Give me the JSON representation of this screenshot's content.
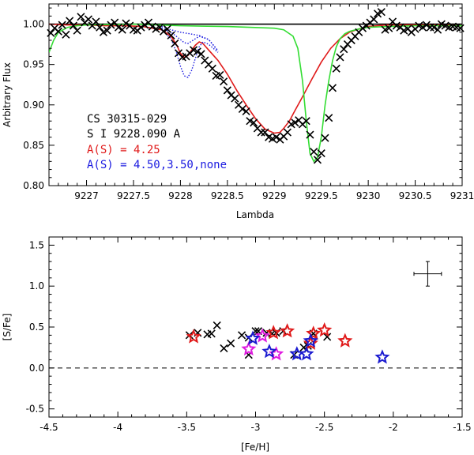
{
  "chart_data": [
    {
      "type": "line",
      "panel": "top",
      "title": "",
      "xlabel": "Lambda",
      "ylabel": "Arbitrary Flux",
      "xlim": [
        9226.6,
        9231.0
      ],
      "ylim": [
        0.8,
        1.025
      ],
      "xticks": [
        9227,
        9227.5,
        9228,
        9228.5,
        9229,
        9229.5,
        9230,
        9230.5,
        9231
      ],
      "xtick_labels": [
        "9227",
        "9227.5",
        "9228",
        "9228.5",
        "9229",
        "9229.5",
        "9230",
        "9230.5",
        "9231"
      ],
      "yticks": [
        0.8,
        0.85,
        0.9,
        0.95,
        1.0
      ],
      "ytick_labels": [
        "0.80",
        "0.85",
        "0.90",
        "0.95",
        "1.00"
      ],
      "annotations": [
        {
          "text": "CS 30315-029",
          "color": "#000000"
        },
        {
          "text": "S I 9228.090 A",
          "color": "#000000"
        },
        {
          "text": "A(S) = 4.25",
          "color": "#e01a1a"
        },
        {
          "text": "A(S) = 4.50,3.50,none",
          "color": "#1a1ae0"
        }
      ],
      "continuum": 1.0,
      "observed_points": {
        "x": [
          9226.62,
          9226.66,
          9226.7,
          9226.74,
          9226.78,
          9226.82,
          9226.86,
          9226.9,
          9226.94,
          9226.98,
          9227.02,
          9227.06,
          9227.1,
          9227.14,
          9227.18,
          9227.22,
          9227.26,
          9227.3,
          9227.34,
          9227.38,
          9227.42,
          9227.46,
          9227.5,
          9227.54,
          9227.58,
          9227.62,
          9227.66,
          9227.7,
          9227.74,
          9227.78,
          9227.82,
          9227.86,
          9227.9,
          9227.94,
          9227.98,
          9228.02,
          9228.06,
          9228.1,
          9228.14,
          9228.18,
          9228.22,
          9228.26,
          9228.3,
          9228.34,
          9228.38,
          9228.42,
          9228.46,
          9228.5,
          9228.54,
          9228.58,
          9228.62,
          9228.66,
          9228.7,
          9228.74,
          9228.78,
          9228.82,
          9228.86,
          9228.9,
          9228.94,
          9228.98,
          9229.02,
          9229.06,
          9229.1,
          9229.14,
          9229.18,
          9229.22,
          9229.26,
          9229.3,
          9229.34,
          9229.38,
          9229.42,
          9229.46,
          9229.5,
          9229.54,
          9229.58,
          9229.62,
          9229.66,
          9229.7,
          9229.74,
          9229.78,
          9229.82,
          9229.86,
          9229.9,
          9229.94,
          9229.98,
          9230.02,
          9230.06,
          9230.1,
          9230.14,
          9230.18,
          9230.22,
          9230.26,
          9230.3,
          9230.34,
          9230.38,
          9230.42,
          9230.46,
          9230.5,
          9230.54,
          9230.58,
          9230.62,
          9230.66,
          9230.7,
          9230.74,
          9230.78,
          9230.82,
          9230.86,
          9230.9,
          9230.94,
          9230.98
        ],
        "y": [
          0.989,
          0.995,
          0.991,
          0.999,
          0.987,
          1.004,
          0.998,
          0.992,
          1.009,
          1.002,
          1.006,
          0.998,
          1.003,
          0.996,
          0.99,
          0.992,
          0.999,
          1.002,
          0.996,
          0.993,
          1.001,
          0.998,
          0.993,
          0.992,
          0.996,
          0.999,
          1.002,
          0.997,
          0.994,
          0.996,
          0.991,
          0.994,
          0.986,
          0.976,
          0.964,
          0.959,
          0.96,
          0.964,
          0.968,
          0.966,
          0.963,
          0.955,
          0.95,
          0.945,
          0.936,
          0.937,
          0.929,
          0.918,
          0.912,
          0.908,
          0.9,
          0.895,
          0.892,
          0.88,
          0.878,
          0.871,
          0.866,
          0.866,
          0.86,
          0.858,
          0.86,
          0.857,
          0.861,
          0.866,
          0.876,
          0.878,
          0.881,
          0.876,
          0.88,
          0.863,
          0.842,
          0.832,
          0.84,
          0.859,
          0.884,
          0.921,
          0.945,
          0.959,
          0.969,
          0.975,
          0.98,
          0.985,
          0.99,
          0.995,
          0.998,
          1.002,
          1.006,
          1.013,
          1.015,
          0.993,
          0.995,
          1.003,
          0.998,
          0.996,
          0.992,
          0.994,
          0.99,
          0.994,
          0.998,
          0.996,
          0.999,
          0.996,
          0.996,
          0.993,
          1.0,
          0.998,
          0.996,
          0.997,
          0.996,
          0.995
        ],
        "color": "#000000",
        "marker": "x"
      },
      "series": [
        {
          "name": "A(S) = 4.25",
          "color": "#e01a1a",
          "style": "solid",
          "x": [
            9226.6,
            9226.8,
            9227.0,
            9227.2,
            9227.4,
            9227.6,
            9227.8,
            9227.9,
            9227.96,
            9228.0,
            9228.04,
            9228.08,
            9228.12,
            9228.16,
            9228.2,
            9228.24,
            9228.3,
            9228.4,
            9228.5,
            9228.6,
            9228.7,
            9228.8,
            9228.9,
            9229.0,
            9229.06,
            9229.1,
            9229.16,
            9229.22,
            9229.3,
            9229.4,
            9229.5,
            9229.6,
            9229.7,
            9229.8,
            9229.9,
            9230.0,
            9230.2,
            9230.5,
            9230.8,
            9231.0
          ],
          "y": [
            1.0,
            0.999,
            0.999,
            0.998,
            0.998,
            0.997,
            0.993,
            0.985,
            0.974,
            0.964,
            0.959,
            0.961,
            0.968,
            0.974,
            0.978,
            0.976,
            0.968,
            0.955,
            0.938,
            0.918,
            0.9,
            0.883,
            0.87,
            0.865,
            0.866,
            0.871,
            0.88,
            0.893,
            0.91,
            0.932,
            0.953,
            0.97,
            0.982,
            0.99,
            0.994,
            0.997,
            0.999,
            0.999,
            0.999,
            0.998
          ]
        },
        {
          "name": "A(S) = 4.50",
          "color": "#1a1ae0",
          "style": "dotted",
          "x": [
            9227.8,
            9227.9,
            9227.96,
            9228.0,
            9228.04,
            9228.08,
            9228.12,
            9228.16,
            9228.2,
            9228.24,
            9228.3,
            9228.4
          ],
          "y": [
            0.993,
            0.982,
            0.964,
            0.948,
            0.936,
            0.934,
            0.943,
            0.958,
            0.972,
            0.978,
            0.975,
            0.965
          ]
        },
        {
          "name": "A(S) = 3.50",
          "color": "#1a1ae0",
          "style": "dotted",
          "x": [
            9227.8,
            9227.9,
            9228.0,
            9228.04,
            9228.08,
            9228.12,
            9228.2,
            9228.3,
            9228.4
          ],
          "y": [
            0.995,
            0.99,
            0.981,
            0.977,
            0.976,
            0.979,
            0.985,
            0.981,
            0.967
          ]
        },
        {
          "name": "none",
          "color": "#1a1ae0",
          "style": "dotted",
          "x": [
            9227.8,
            9227.9,
            9228.0,
            9228.1,
            9228.2,
            9228.3,
            9228.4
          ],
          "y": [
            0.997,
            0.993,
            0.99,
            0.988,
            0.986,
            0.981,
            0.967
          ]
        },
        {
          "name": "green fit",
          "color": "#33dd33",
          "style": "solid",
          "x": [
            9226.6,
            9226.65,
            9226.7,
            9226.8,
            9226.9,
            9227.0,
            9227.5,
            9228.0,
            9228.5,
            9229.0,
            9229.1,
            9229.2,
            9229.25,
            9229.3,
            9229.34,
            9229.38,
            9229.42,
            9229.46,
            9229.5,
            9229.54,
            9229.58,
            9229.62,
            9229.66,
            9229.7,
            9229.75,
            9229.8,
            9229.9,
            9230.0,
            9230.2,
            9230.5,
            9230.8,
            9231.0
          ],
          "y": [
            0.965,
            0.98,
            0.99,
            0.996,
            0.998,
            0.999,
            1.0,
            0.998,
            0.997,
            0.995,
            0.993,
            0.985,
            0.97,
            0.93,
            0.88,
            0.84,
            0.83,
            0.835,
            0.86,
            0.9,
            0.93,
            0.955,
            0.972,
            0.982,
            0.988,
            0.991,
            0.994,
            0.996,
            0.997,
            0.998,
            0.998,
            0.998
          ]
        }
      ]
    },
    {
      "type": "scatter",
      "panel": "bottom",
      "title": "",
      "xlabel": "[Fe/H]",
      "ylabel": "[S/Fe]",
      "xlim": [
        -4.5,
        -1.5
      ],
      "ylim": [
        -0.6,
        1.6
      ],
      "xticks": [
        -4.5,
        -4,
        -3.5,
        -3,
        -2.5,
        -2,
        -1.5
      ],
      "xtick_labels": [
        "-4.5",
        "-4",
        "-3.5",
        "-3",
        "-2.5",
        "-2",
        "-1.5"
      ],
      "yticks": [
        -0.5,
        0.0,
        0.5,
        1.0,
        1.5
      ],
      "ytick_labels": [
        "-0.5",
        "0.0",
        "0.5",
        "1.0",
        "1.5"
      ],
      "reference_line": {
        "y": 0.0,
        "style": "dashed"
      },
      "error_bar": {
        "x": -1.75,
        "y": 1.15,
        "xerr": 0.1,
        "yerr": 0.15
      },
      "series": [
        {
          "name": "cross",
          "marker": "x",
          "color": "#000000",
          "x": [
            -3.48,
            -3.42,
            -3.35,
            -3.32,
            -3.28,
            -3.23,
            -3.18,
            -3.1,
            -3.05,
            -3.0,
            -2.98,
            -2.92,
            -2.88,
            -2.85,
            -2.8,
            -2.72,
            -2.65,
            -2.62,
            -2.58,
            -2.48,
            -3.05
          ],
          "y": [
            0.4,
            0.43,
            0.41,
            0.42,
            0.52,
            0.24,
            0.3,
            0.4,
            0.37,
            0.45,
            0.45,
            0.43,
            0.42,
            0.43,
            0.45,
            0.16,
            0.25,
            0.27,
            0.42,
            0.38,
            0.16
          ]
        },
        {
          "name": "red star",
          "marker": "star",
          "color": "#e01a1a",
          "x": [
            -3.45,
            -2.87,
            -2.77,
            -2.6,
            -2.58,
            -2.5,
            -2.35
          ],
          "y": [
            0.38,
            0.43,
            0.45,
            0.3,
            0.42,
            0.46,
            0.33
          ]
        },
        {
          "name": "magenta star",
          "marker": "star",
          "color": "#e01ae0",
          "x": [
            -3.05,
            -2.95,
            -2.85
          ],
          "y": [
            0.23,
            0.39,
            0.17
          ]
        },
        {
          "name": "blue star",
          "marker": "star",
          "color": "#1a1ad0",
          "x": [
            -3.02,
            -2.9,
            -2.7,
            -2.63,
            -2.6,
            -2.08
          ],
          "y": [
            0.36,
            0.2,
            0.17,
            0.17,
            0.33,
            0.13
          ]
        }
      ]
    }
  ]
}
